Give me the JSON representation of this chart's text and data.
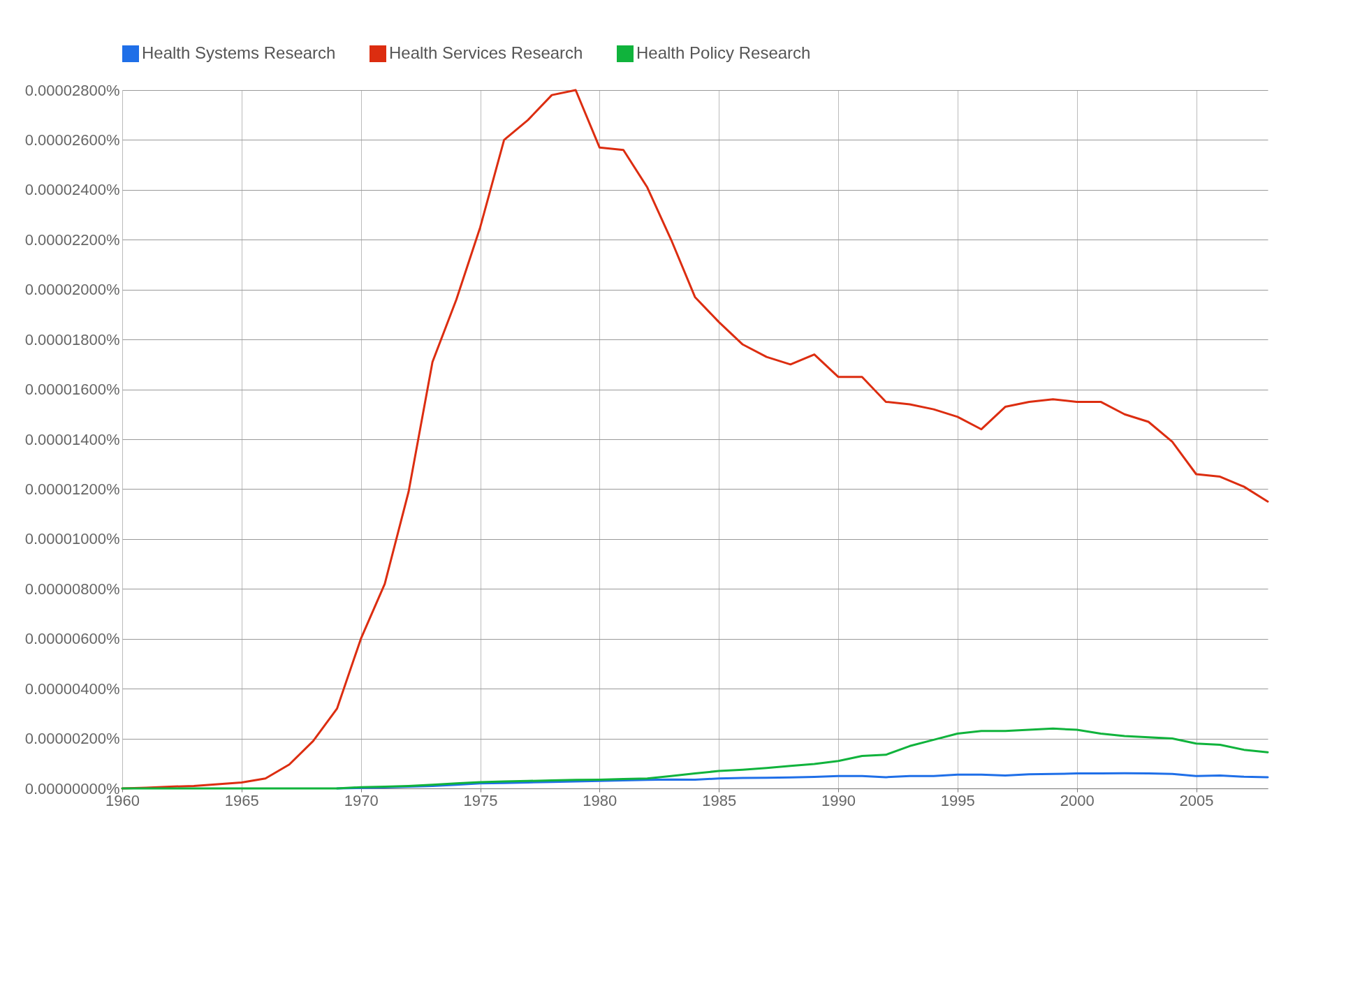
{
  "chart_data": {
    "type": "line",
    "x": [
      1960,
      1961,
      1962,
      1963,
      1964,
      1965,
      1966,
      1967,
      1968,
      1969,
      1970,
      1971,
      1972,
      1973,
      1974,
      1975,
      1976,
      1977,
      1978,
      1979,
      1980,
      1981,
      1982,
      1983,
      1984,
      1985,
      1986,
      1987,
      1988,
      1989,
      1990,
      1991,
      1992,
      1993,
      1994,
      1995,
      1996,
      1997,
      1998,
      1999,
      2000,
      2001,
      2002,
      2003,
      2004,
      2005,
      2006,
      2007,
      2008
    ],
    "series": [
      {
        "name": "Health Systems Research",
        "color": "#1f6fe8",
        "values": [
          null,
          null,
          null,
          null,
          null,
          null,
          null,
          null,
          null,
          0,
          2e-08,
          4e-08,
          7e-08,
          1e-07,
          1.5e-07,
          2e-07,
          2.2e-07,
          2.4e-07,
          2.6e-07,
          2.8e-07,
          3e-07,
          3.2e-07,
          3.4e-07,
          3.6e-07,
          3.5e-07,
          4e-07,
          4.2e-07,
          4.3e-07,
          4.4e-07,
          4.6e-07,
          5e-07,
          5e-07,
          4.5e-07,
          5e-07,
          5e-07,
          5.5e-07,
          5.5e-07,
          5.2e-07,
          5.7e-07,
          5.8e-07,
          6e-07,
          6e-07,
          6.1e-07,
          6e-07,
          5.8e-07,
          5e-07,
          5.2e-07,
          4.7e-07,
          4.5e-07
        ]
      },
      {
        "name": "Health Services Research",
        "color": "#dc2d10",
        "values": [
          0,
          3e-08,
          7e-08,
          1e-07,
          1.7e-07,
          2.4e-07,
          4e-07,
          9.6e-07,
          1.9e-06,
          3.2e-06,
          6e-06,
          8.2e-06,
          1.19e-05,
          1.71e-05,
          1.96e-05,
          2.25e-05,
          2.6e-05,
          2.68e-05,
          2.78e-05,
          2.8e-05,
          2.57e-05,
          2.56e-05,
          2.41e-05,
          2.2e-05,
          1.97e-05,
          1.87e-05,
          1.78e-05,
          1.73e-05,
          1.7e-05,
          1.74e-05,
          1.65e-05,
          1.65e-05,
          1.55e-05,
          1.54e-05,
          1.52e-05,
          1.49e-05,
          1.44e-05,
          1.53e-05,
          1.55e-05,
          1.56e-05,
          1.55e-05,
          1.55e-05,
          1.5e-05,
          1.47e-05,
          1.39e-05,
          1.26e-05,
          1.25e-05,
          1.21e-05,
          1.15e-05
        ]
      },
      {
        "name": "Health Policy Research",
        "color": "#10b33c",
        "values": [
          0,
          0,
          0,
          0,
          0,
          0,
          0,
          0,
          0,
          0,
          5e-08,
          7e-08,
          1e-07,
          1.5e-07,
          2e-07,
          2.5e-07,
          2.8e-07,
          3e-07,
          3.2e-07,
          3.4e-07,
          3.5e-07,
          3.8e-07,
          4e-07,
          5e-07,
          6e-07,
          7e-07,
          7.5e-07,
          8.2e-07,
          9e-07,
          9.8e-07,
          1.1e-06,
          1.3e-06,
          1.35e-06,
          1.7e-06,
          1.95e-06,
          2.2e-06,
          2.3e-06,
          2.3e-06,
          2.35e-06,
          2.4e-06,
          2.35e-06,
          2.2e-06,
          2.1e-06,
          2.05e-06,
          2e-06,
          1.8e-06,
          1.75e-06,
          1.55e-06,
          1.45e-06
        ]
      }
    ],
    "xlim": [
      1960,
      2008
    ],
    "xticks": [
      1960,
      1965,
      1970,
      1975,
      1980,
      1985,
      1990,
      1995,
      2000,
      2005
    ],
    "ylim": [
      0,
      2.8e-05
    ],
    "yticks": [
      {
        "value": 0,
        "label": "0.00000000%"
      },
      {
        "value": 2e-06,
        "label": "0.00000200%"
      },
      {
        "value": 4e-06,
        "label": "0.00000400%"
      },
      {
        "value": 6e-06,
        "label": "0.00000600%"
      },
      {
        "value": 8e-06,
        "label": "0.00000800%"
      },
      {
        "value": 1e-05,
        "label": "0.00001000%"
      },
      {
        "value": 1.2e-05,
        "label": "0.00001200%"
      },
      {
        "value": 1.4e-05,
        "label": "0.00001400%"
      },
      {
        "value": 1.6e-05,
        "label": "0.00001600%"
      },
      {
        "value": 1.8e-05,
        "label": "0.00001800%"
      },
      {
        "value": 2e-05,
        "label": "0.00002000%"
      },
      {
        "value": 2.2e-05,
        "label": "0.00002200%"
      },
      {
        "value": 2.4e-05,
        "label": "0.00002400%"
      },
      {
        "value": 2.6e-05,
        "label": "0.00002600%"
      },
      {
        "value": 2.8e-05,
        "label": "0.00002800%"
      }
    ],
    "grid": true,
    "legend": "top",
    "marker": "none",
    "line_style": "solid"
  }
}
